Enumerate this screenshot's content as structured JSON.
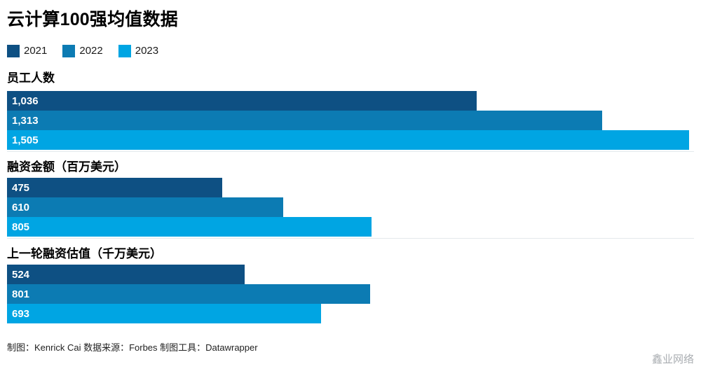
{
  "title": "云计算100强均值数据",
  "legend": {
    "items": [
      {
        "label": "2021",
        "color": "#0e5083"
      },
      {
        "label": "2022",
        "color": "#0c7bb3"
      },
      {
        "label": "2023",
        "color": "#00a5e3"
      }
    ]
  },
  "chart_data": {
    "type": "bar",
    "orientation": "horizontal",
    "title": "云计算100强均值数据",
    "legend_entries": [
      "2021",
      "2022",
      "2023"
    ],
    "legend_position": "top-left",
    "grid": "baseline-only",
    "xlim": [
      0,
      1505
    ],
    "series_colors": [
      "#0e5083",
      "#0c7bb3",
      "#00a5e3"
    ],
    "groups": [
      {
        "label": "员工人数",
        "years": [
          "2021",
          "2022",
          "2023"
        ],
        "values": [
          1036,
          1313,
          1505
        ],
        "display_values": [
          "1,036",
          "1,313",
          "1,505"
        ]
      },
      {
        "label": "融资金额（百万美元）",
        "years": [
          "2021",
          "2022",
          "2023"
        ],
        "values": [
          475,
          610,
          805
        ],
        "display_values": [
          "475",
          "610",
          "805"
        ]
      },
      {
        "label": "上一轮融资估值（千万美元）",
        "years": [
          "2021",
          "2022",
          "2023"
        ],
        "values": [
          524,
          801,
          693
        ],
        "display_values": [
          "524",
          "801",
          "693"
        ]
      }
    ]
  },
  "footer": {
    "credit": "制图：Kenrick Cai  数据来源：Forbes 制图工具：Datawrapper"
  },
  "watermark": "鑫业网络"
}
